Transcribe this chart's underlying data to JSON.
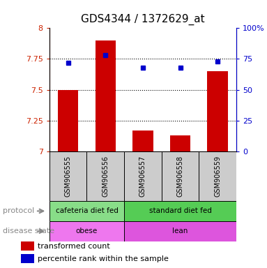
{
  "title": "GDS4344 / 1372629_at",
  "samples": [
    "GSM906555",
    "GSM906556",
    "GSM906557",
    "GSM906558",
    "GSM906559"
  ],
  "bar_values": [
    7.5,
    7.9,
    7.17,
    7.13,
    7.65
  ],
  "bar_base": 7.0,
  "percentile_values": [
    72,
    78,
    68,
    68,
    73
  ],
  "ylim_left": [
    7.0,
    8.0
  ],
  "ylim_right": [
    0,
    100
  ],
  "yticks_left": [
    7.0,
    7.25,
    7.5,
    7.75,
    8.0
  ],
  "ytick_labels_left": [
    "7",
    "7.25",
    "7.5",
    "7.75",
    "8"
  ],
  "yticks_right": [
    0,
    25,
    50,
    75,
    100
  ],
  "ytick_labels_right": [
    "0",
    "25",
    "50",
    "75",
    "100%"
  ],
  "bar_color": "#cc0000",
  "dot_color": "#0000cc",
  "left_axis_color": "#cc2200",
  "right_axis_color": "#0000cc",
  "grid_color": "#000000",
  "protocol_groups": [
    {
      "label": "cafeteria diet fed",
      "samples": [
        0,
        1
      ],
      "color": "#88dd88"
    },
    {
      "label": "standard diet fed",
      "samples": [
        2,
        3,
        4
      ],
      "color": "#55cc55"
    }
  ],
  "disease_groups": [
    {
      "label": "obese",
      "samples": [
        0,
        1
      ],
      "color": "#ee77ee"
    },
    {
      "label": "lean",
      "samples": [
        2,
        3,
        4
      ],
      "color": "#dd55dd"
    }
  ],
  "protocol_label": "protocol",
  "disease_label": "disease state",
  "legend_red_label": "transformed count",
  "legend_blue_label": "percentile rank within the sample",
  "sample_box_color": "#cccccc",
  "bar_width": 0.55
}
